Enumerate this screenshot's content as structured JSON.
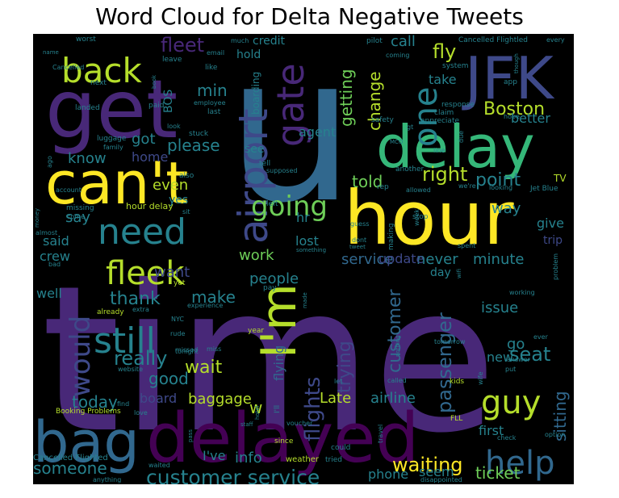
{
  "chart_data": {
    "type": "word_cloud",
    "title": "Word Cloud for Delta Negative Tweets",
    "background": "#000000",
    "palette": [
      "#440154",
      "#482878",
      "#3e4989",
      "#31688e",
      "#26828e",
      "#1f9e89",
      "#35b779",
      "#6ece58",
      "#b5de2b",
      "#fde725"
    ],
    "words": [
      {
        "text": "time",
        "size": 1.0,
        "color": "#482878"
      },
      {
        "text": "u",
        "size": 0.95,
        "color": "#31688e"
      },
      {
        "text": "hour",
        "size": 0.62,
        "color": "#fde725"
      },
      {
        "text": "get",
        "size": 0.6,
        "color": "#482878"
      },
      {
        "text": "delayed",
        "size": 0.58,
        "color": "#440154"
      },
      {
        "text": "bag",
        "size": 0.5,
        "color": "#31688e"
      },
      {
        "text": "delay",
        "size": 0.48,
        "color": "#35b779"
      },
      {
        "text": "can't",
        "size": 0.46,
        "color": "#fde725"
      },
      {
        "text": "JFK",
        "size": 0.42,
        "color": "#3e4989"
      },
      {
        "text": "I'm",
        "size": 0.4,
        "color": "#b5de2b"
      },
      {
        "text": "airport",
        "size": 0.33,
        "color": "#3e4989"
      },
      {
        "text": "gate",
        "size": 0.33,
        "color": "#482878"
      },
      {
        "text": "need",
        "size": 0.31,
        "color": "#26828e"
      },
      {
        "text": "back",
        "size": 0.3,
        "color": "#b5de2b"
      },
      {
        "text": "still",
        "size": 0.3,
        "color": "#26828e"
      },
      {
        "text": "fleek",
        "size": 0.28,
        "color": "#b5de2b"
      },
      {
        "text": "guy",
        "size": 0.28,
        "color": "#b5de2b"
      },
      {
        "text": "help",
        "size": 0.27,
        "color": "#31688e"
      },
      {
        "text": "one",
        "size": 0.26,
        "color": "#26828e"
      },
      {
        "text": "would",
        "size": 0.25,
        "color": "#3e4989"
      },
      {
        "text": "going",
        "size": 0.23,
        "color": "#6ece58"
      },
      {
        "text": "customer service",
        "size": 0.21,
        "color": "#26828e"
      },
      {
        "text": "flights",
        "size": 0.2,
        "color": "#3e4989"
      },
      {
        "text": "passenger",
        "size": 0.19,
        "color": "#31688e"
      },
      {
        "text": "seat",
        "size": 0.18,
        "color": "#26828e"
      },
      {
        "text": "fleet",
        "size": 0.18,
        "color": "#482878"
      },
      {
        "text": "Boston",
        "size": 0.17,
        "color": "#b5de2b"
      },
      {
        "text": "right",
        "size": 0.17,
        "color": "#b5de2b"
      },
      {
        "text": "fly",
        "size": 0.17,
        "color": "#b5de2b"
      },
      {
        "text": "waiting",
        "size": 0.17,
        "color": "#fde725"
      },
      {
        "text": "customer",
        "size": 0.17,
        "color": "#31688e"
      },
      {
        "text": "trying",
        "size": 0.17,
        "color": "#3e4989"
      },
      {
        "text": "really",
        "size": 0.17,
        "color": "#26828e"
      },
      {
        "text": "wait",
        "size": 0.17,
        "color": "#b5de2b"
      },
      {
        "text": "thank",
        "size": 0.16,
        "color": "#26828e"
      },
      {
        "text": "point",
        "size": 0.16,
        "color": "#26828e"
      },
      {
        "text": "someone",
        "size": 0.16,
        "color": "#26828e"
      },
      {
        "text": "today",
        "size": 0.15,
        "color": "#26828e"
      },
      {
        "text": "sitting",
        "size": 0.15,
        "color": "#31688e"
      },
      {
        "text": "change",
        "size": 0.15,
        "color": "#b5de2b"
      },
      {
        "text": "getting",
        "size": 0.14,
        "color": "#6ece58"
      },
      {
        "text": "ticket",
        "size": 0.14,
        "color": "#6ece58"
      },
      {
        "text": "please",
        "size": 0.14,
        "color": "#26828e"
      },
      {
        "text": "told",
        "size": 0.14,
        "color": "#6ece58"
      },
      {
        "text": "make",
        "size": 0.14,
        "color": "#26828e"
      },
      {
        "text": "good",
        "size": 0.14,
        "color": "#26828e"
      },
      {
        "text": "baggage",
        "size": 0.13,
        "color": "#b5de2b"
      },
      {
        "text": "Late",
        "size": 0.13,
        "color": "#b5de2b"
      },
      {
        "text": "airline",
        "size": 0.13,
        "color": "#26828e"
      },
      {
        "text": "know",
        "size": 0.13,
        "color": "#26828e"
      },
      {
        "text": "got",
        "size": 0.13,
        "color": "#26828e"
      },
      {
        "text": "min",
        "size": 0.13,
        "color": "#26828e"
      },
      {
        "text": "even",
        "size": 0.13,
        "color": "#b5de2b"
      },
      {
        "text": "say",
        "size": 0.13,
        "color": "#26828e"
      },
      {
        "text": "want",
        "size": 0.13,
        "color": "#3e4989"
      },
      {
        "text": "work",
        "size": 0.13,
        "color": "#6ece58"
      },
      {
        "text": "people",
        "size": 0.13,
        "color": "#26828e"
      },
      {
        "text": "issue",
        "size": 0.13,
        "color": "#26828e"
      },
      {
        "text": "never",
        "size": 0.13,
        "color": "#26828e"
      },
      {
        "text": "minute",
        "size": 0.13,
        "color": "#26828e"
      },
      {
        "text": "call",
        "size": 0.12,
        "color": "#26828e"
      },
      {
        "text": "go",
        "size": 0.12,
        "color": "#26828e"
      },
      {
        "text": "first",
        "size": 0.12,
        "color": "#26828e"
      },
      {
        "text": "phone",
        "size": 0.12,
        "color": "#26828e"
      },
      {
        "text": "info",
        "size": 0.12,
        "color": "#26828e"
      },
      {
        "text": "I've",
        "size": 0.12,
        "color": "#26828e"
      },
      {
        "text": "service",
        "size": 0.12,
        "color": "#31688e"
      },
      {
        "text": "way",
        "size": 0.12,
        "color": "#26828e"
      },
      {
        "text": "hr",
        "size": 0.12,
        "color": "#26828e"
      },
      {
        "text": "lost",
        "size": 0.12,
        "color": "#26828e"
      },
      {
        "text": "said",
        "size": 0.12,
        "color": "#26828e"
      },
      {
        "text": "crew",
        "size": 0.11,
        "color": "#26828e"
      },
      {
        "text": "well",
        "size": 0.11,
        "color": "#26828e"
      },
      {
        "text": "board",
        "size": 0.11,
        "color": "#3e4989"
      },
      {
        "text": "w",
        "size": 0.11,
        "color": "#b5de2b"
      },
      {
        "text": "new",
        "size": 0.11,
        "color": "#26828e"
      },
      {
        "text": "take",
        "size": 0.11,
        "color": "#26828e"
      },
      {
        "text": "seem",
        "size": 0.11,
        "color": "#26828e"
      },
      {
        "text": "better",
        "size": 0.11,
        "color": "#26828e"
      },
      {
        "text": "give",
        "size": 0.11,
        "color": "#26828e"
      },
      {
        "text": "update",
        "size": 0.11,
        "color": "#3e4989"
      },
      {
        "text": "flying",
        "size": 0.11,
        "color": "#31688e"
      },
      {
        "text": "home",
        "size": 0.1,
        "color": "#3e4989"
      },
      {
        "text": "agent",
        "size": 0.1,
        "color": "#26828e"
      },
      {
        "text": "BOS",
        "size": 0.1,
        "color": "#26828e"
      },
      {
        "text": "hold",
        "size": 0.1,
        "color": "#26828e"
      },
      {
        "text": "credit",
        "size": 0.1,
        "color": "#26828e"
      },
      {
        "text": "trip",
        "size": 0.1,
        "color": "#3e4989"
      },
      {
        "text": "day",
        "size": 0.1,
        "color": "#26828e"
      },
      {
        "text": "yes",
        "size": 0.1,
        "color": "#26828e"
      },
      {
        "text": "see",
        "size": 0.1,
        "color": "#26828e"
      },
      {
        "text": "boarding",
        "size": 0.09,
        "color": "#26828e"
      },
      {
        "text": "worst",
        "size": 0.07,
        "color": "#26828e"
      },
      {
        "text": "much",
        "size": 0.06,
        "color": "#26828e"
      },
      {
        "text": "pilot",
        "size": 0.06,
        "color": "#26828e"
      },
      {
        "text": "Cancelled Flightled",
        "size": 0.06,
        "color": "#26828e"
      },
      {
        "text": "every",
        "size": 0.05,
        "color": "#26828e"
      },
      {
        "text": "email",
        "size": 0.06,
        "color": "#26828e"
      },
      {
        "text": "leave",
        "size": 0.06,
        "color": "#26828e"
      },
      {
        "text": "like",
        "size": 0.06,
        "color": "#26828e"
      },
      {
        "text": "last",
        "size": 0.06,
        "color": "#26828e"
      },
      {
        "text": "system",
        "size": 0.06,
        "color": "#26828e"
      },
      {
        "text": "response",
        "size": 0.06,
        "color": "#26828e"
      },
      {
        "text": "claim",
        "size": 0.06,
        "color": "#26828e"
      },
      {
        "text": "app",
        "size": 0.06,
        "color": "#26828e"
      },
      {
        "text": "hope",
        "size": 0.05,
        "color": "#26828e"
      },
      {
        "text": "appreciate",
        "size": 0.05,
        "color": "#26828e"
      },
      {
        "text": "safety",
        "size": 0.06,
        "color": "#26828e"
      },
      {
        "text": "TV",
        "size": 0.07,
        "color": "#b5de2b"
      },
      {
        "text": "Jet Blue",
        "size": 0.06,
        "color": "#26828e"
      },
      {
        "text": "looking",
        "size": 0.05,
        "color": "#26828e"
      },
      {
        "text": "allowed",
        "size": 0.05,
        "color": "#26828e"
      },
      {
        "text": "another",
        "size": 0.05,
        "color": "#26828e"
      },
      {
        "text": "stop",
        "size": 0.05,
        "color": "#26828e"
      },
      {
        "text": "week",
        "size": 0.05,
        "color": "#26828e"
      },
      {
        "text": "guess",
        "size": 0.05,
        "color": "#26828e"
      },
      {
        "text": "making",
        "size": 0.05,
        "color": "#26828e"
      },
      {
        "text": "dont",
        "size": 0.05,
        "color": "#26828e"
      },
      {
        "text": "tweet",
        "size": 0.04,
        "color": "#26828e"
      },
      {
        "text": "spent",
        "size": 0.05,
        "color": "#26828e"
      },
      {
        "text": "wifi",
        "size": 0.04,
        "color": "#26828e"
      },
      {
        "text": "problem",
        "size": 0.05,
        "color": "#26828e"
      },
      {
        "text": "working",
        "size": 0.05,
        "color": "#26828e"
      },
      {
        "text": "made",
        "size": 0.04,
        "color": "#26828e"
      },
      {
        "text": "pay",
        "size": 0.05,
        "color": "#26828e"
      },
      {
        "text": "something",
        "size": 0.05,
        "color": "#26828e"
      },
      {
        "text": "left",
        "size": 0.05,
        "color": "#26828e"
      },
      {
        "text": "supposed",
        "size": 0.05,
        "color": "#26828e"
      },
      {
        "text": "tell",
        "size": 0.05,
        "color": "#26828e"
      },
      {
        "text": "stuck",
        "size": 0.05,
        "color": "#26828e"
      },
      {
        "text": "employee",
        "size": 0.05,
        "color": "#26828e"
      },
      {
        "text": "paid",
        "size": 0.05,
        "color": "#26828e"
      },
      {
        "text": "landed",
        "size": 0.05,
        "color": "#26828e"
      },
      {
        "text": "next",
        "size": 0.05,
        "color": "#26828e"
      },
      {
        "text": "Cancelled",
        "size": 0.05,
        "color": "#26828e"
      },
      {
        "text": "name",
        "size": 0.04,
        "color": "#26828e"
      },
      {
        "text": "luggage",
        "size": 0.05,
        "color": "#26828e"
      },
      {
        "text": "family",
        "size": 0.05,
        "color": "#26828e"
      },
      {
        "text": "account",
        "size": 0.05,
        "color": "#26828e"
      },
      {
        "text": "missing",
        "size": 0.05,
        "color": "#26828e"
      },
      {
        "text": "come",
        "size": 0.05,
        "color": "#26828e"
      },
      {
        "text": "money",
        "size": 0.04,
        "color": "#26828e"
      },
      {
        "text": "almost",
        "size": 0.05,
        "color": "#26828e"
      },
      {
        "text": "bad",
        "size": 0.05,
        "color": "#26828e"
      },
      {
        "text": "hour delay",
        "size": 0.06,
        "color": "#b5de2b"
      },
      {
        "text": "also",
        "size": 0.05,
        "color": "#26828e"
      },
      {
        "text": "sit",
        "size": 0.05,
        "color": "#26828e"
      },
      {
        "text": "yet",
        "size": 0.05,
        "color": "#b5de2b"
      },
      {
        "text": "already",
        "size": 0.06,
        "color": "#b5de2b"
      },
      {
        "text": "extra",
        "size": 0.05,
        "color": "#26828e"
      },
      {
        "text": "experience",
        "size": 0.05,
        "color": "#26828e"
      },
      {
        "text": "NYC",
        "size": 0.05,
        "color": "#26828e"
      },
      {
        "text": "rude",
        "size": 0.05,
        "color": "#26828e"
      },
      {
        "text": "missed",
        "size": 0.05,
        "color": "#26828e"
      },
      {
        "text": "miss",
        "size": 0.05,
        "color": "#26828e"
      },
      {
        "text": "year",
        "size": 0.05,
        "color": "#b5de2b"
      },
      {
        "text": "website",
        "size": 0.05,
        "color": "#26828e"
      },
      {
        "text": "find",
        "size": 0.05,
        "color": "#26828e"
      },
      {
        "text": "love",
        "size": 0.05,
        "color": "#26828e"
      },
      {
        "text": "Booking Problems",
        "size": 0.05,
        "color": "#b5de2b"
      },
      {
        "text": "Cancelled Flighted",
        "size": 0.06,
        "color": "#26828e"
      },
      {
        "text": "anything",
        "size": 0.05,
        "color": "#26828e"
      },
      {
        "text": "waited",
        "size": 0.05,
        "color": "#26828e"
      },
      {
        "text": "tonight",
        "size": 0.05,
        "color": "#26828e"
      },
      {
        "text": "staff",
        "size": 0.05,
        "color": "#26828e"
      },
      {
        "text": "hotel",
        "size": 0.05,
        "color": "#26828e"
      },
      {
        "text": "since",
        "size": 0.05,
        "color": "#b5de2b"
      },
      {
        "text": "weather",
        "size": 0.06,
        "color": "#b5de2b"
      },
      {
        "text": "tried",
        "size": 0.05,
        "color": "#26828e"
      },
      {
        "text": "could",
        "size": 0.05,
        "color": "#26828e"
      },
      {
        "text": "voucher",
        "size": 0.05,
        "color": "#26828e"
      },
      {
        "text": "travel",
        "size": 0.05,
        "color": "#26828e"
      },
      {
        "text": "disappointed",
        "size": 0.05,
        "color": "#26828e"
      },
      {
        "text": "FLL",
        "size": 0.05,
        "color": "#b5de2b"
      },
      {
        "text": "kids",
        "size": 0.05,
        "color": "#b5de2b"
      },
      {
        "text": "called",
        "size": 0.05,
        "color": "#26828e"
      },
      {
        "text": "nothing",
        "size": 0.04,
        "color": "#26828e"
      },
      {
        "text": "let",
        "size": 0.05,
        "color": "#26828e"
      },
      {
        "text": "wife",
        "size": 0.05,
        "color": "#26828e"
      },
      {
        "text": "put",
        "size": 0.05,
        "color": "#26828e"
      },
      {
        "text": "answer",
        "size": 0.05,
        "color": "#26828e"
      },
      {
        "text": "ever",
        "size": 0.05,
        "color": "#26828e"
      },
      {
        "text": "option",
        "size": 0.05,
        "color": "#26828e"
      },
      {
        "text": "check",
        "size": 0.05,
        "color": "#26828e"
      },
      {
        "text": "tomorrow",
        "size": 0.05,
        "color": "#26828e"
      },
      {
        "text": "pass",
        "size": 0.04,
        "color": "#26828e"
      },
      {
        "text": "rep",
        "size": 0.05,
        "color": "#26828e"
      },
      {
        "text": "we're",
        "size": 0.05,
        "color": "#26828e"
      },
      {
        "text": "due",
        "size": 0.05,
        "color": "#26828e"
      },
      {
        "text": "line",
        "size": 0.05,
        "color": "#26828e"
      },
      {
        "text": "gt",
        "size": 0.05,
        "color": "#26828e"
      },
      {
        "text": "MCO",
        "size": 0.04,
        "color": "#26828e"
      },
      {
        "text": "coming",
        "size": 0.05,
        "color": "#26828e"
      },
      {
        "text": "though",
        "size": 0.04,
        "color": "#26828e"
      },
      {
        "text": "book",
        "size": 0.04,
        "color": "#26828e"
      },
      {
        "text": "look",
        "size": 0.05,
        "color": "#26828e"
      },
      {
        "text": "I'll",
        "size": 0.05,
        "color": "#26828e"
      },
      {
        "text": "ago",
        "size": 0.05,
        "color": "#26828e"
      }
    ]
  }
}
